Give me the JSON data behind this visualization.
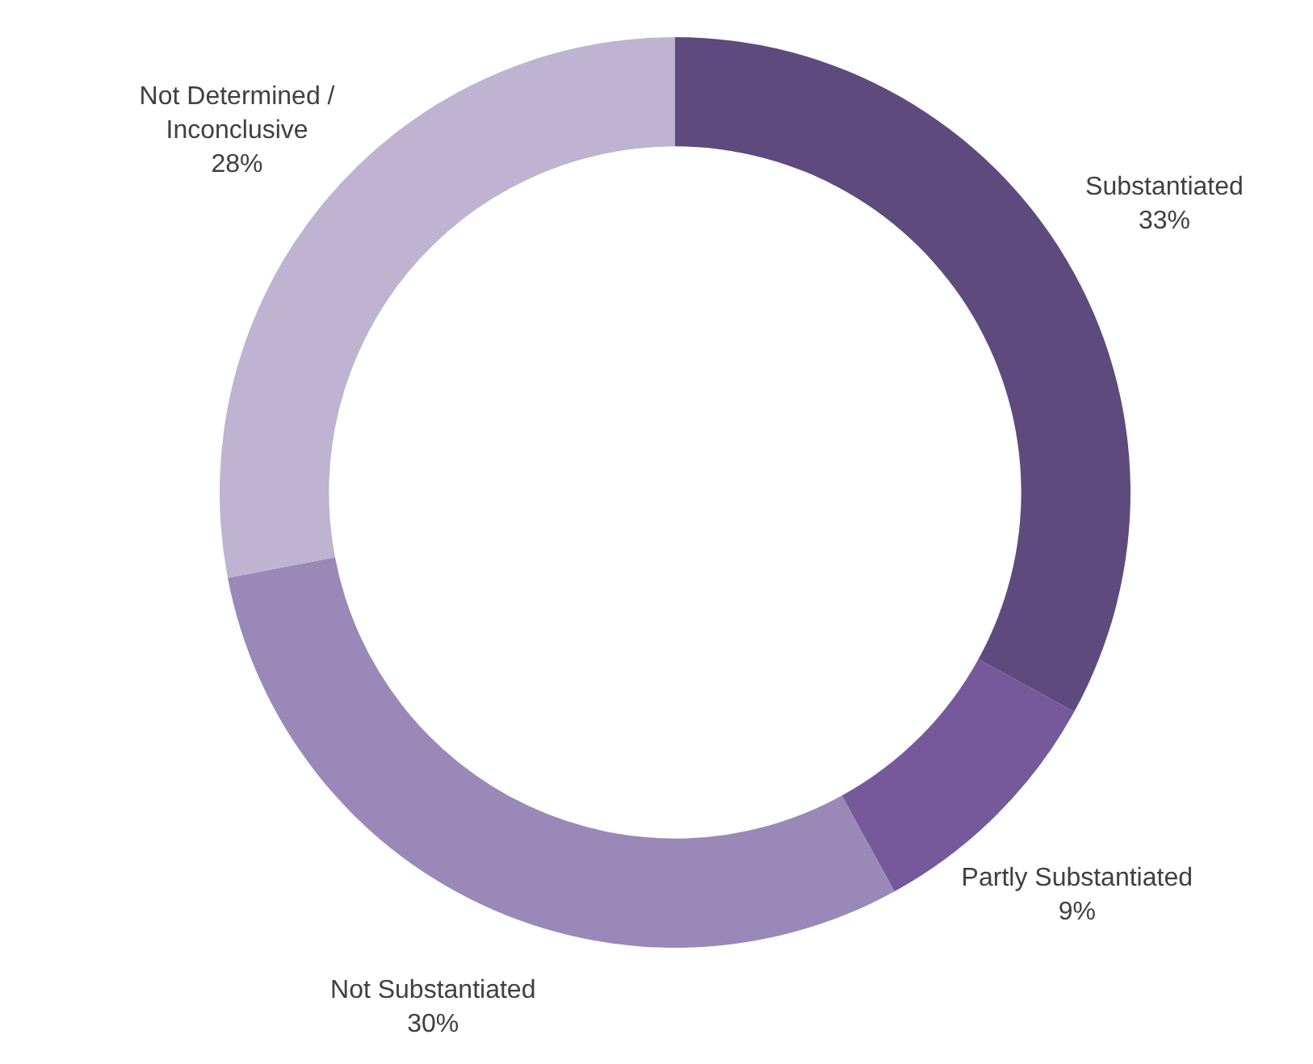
{
  "chart_data": {
    "type": "donut",
    "categories": [
      "Substantiated",
      "Partly Substantiated",
      "Not Substantiated",
      "Not Determined / Inconclusive"
    ],
    "values": [
      33,
      9,
      30,
      28
    ],
    "colors": [
      "#5f4a7e",
      "#76599a",
      "#9a88b8",
      "#beb3d0"
    ],
    "value_labels": [
      "33%",
      "9%",
      "30%",
      "28%"
    ]
  }
}
